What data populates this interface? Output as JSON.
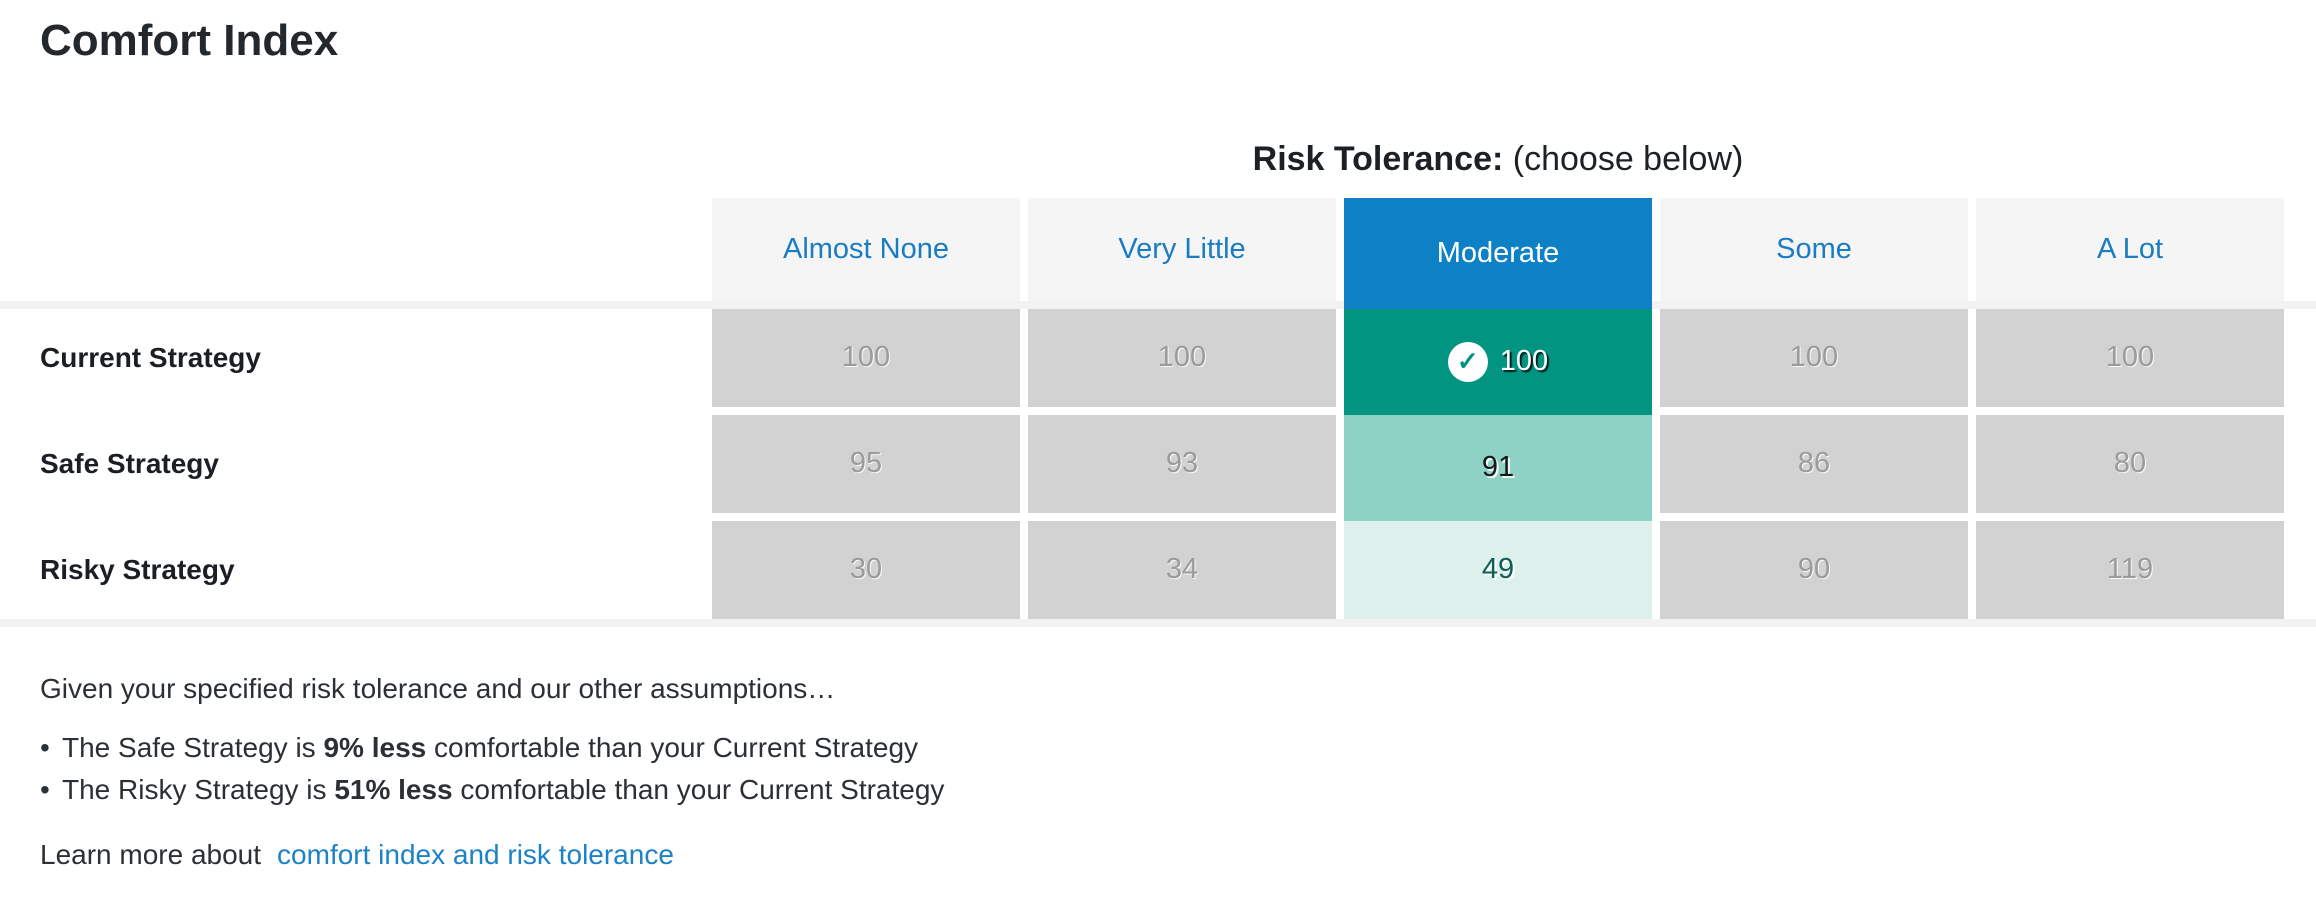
{
  "page": {
    "title": "Comfort Index"
  },
  "risk_tolerance_heading": {
    "label_bold": "Risk Tolerance:",
    "label_rest": " (choose below)"
  },
  "table": {
    "columns": [
      "Almost None",
      "Very Little",
      "Moderate",
      "Some",
      "A Lot"
    ],
    "selected_column": "Moderate",
    "rows": [
      {
        "label": "Current Strategy",
        "values": [
          "100",
          "100",
          "100",
          "100",
          "100"
        ]
      },
      {
        "label": "Safe Strategy",
        "values": [
          "95",
          "93",
          "91",
          "86",
          "80"
        ]
      },
      {
        "label": "Risky Strategy",
        "values": [
          "30",
          "34",
          "49",
          "90",
          "119"
        ]
      }
    ]
  },
  "icons": {
    "check": "✓"
  },
  "colors": {
    "selected_tab_blue": "#0e81c6",
    "header_text_blue": "#1a7cc1",
    "selected_cell_teal": "#009481",
    "selected_cell_teal_mid": "#8ed1c5",
    "selected_cell_teal_light": "#def0eb",
    "unselected_cell_gray": "#d2d2d2",
    "link_blue": "#1c82c8"
  },
  "summary": {
    "intro": "Given your specified risk tolerance and our other assumptions…",
    "bullets": [
      {
        "prefix": "The Safe Strategy is ",
        "bold": "9% less",
        "suffix": " comfortable than your Current Strategy"
      },
      {
        "prefix": "The Risky Strategy is ",
        "bold": "51% less",
        "suffix": " comfortable than your Current Strategy"
      }
    ],
    "learn_more_text": "Learn more about",
    "learn_more_link": "comfort index and risk tolerance"
  }
}
